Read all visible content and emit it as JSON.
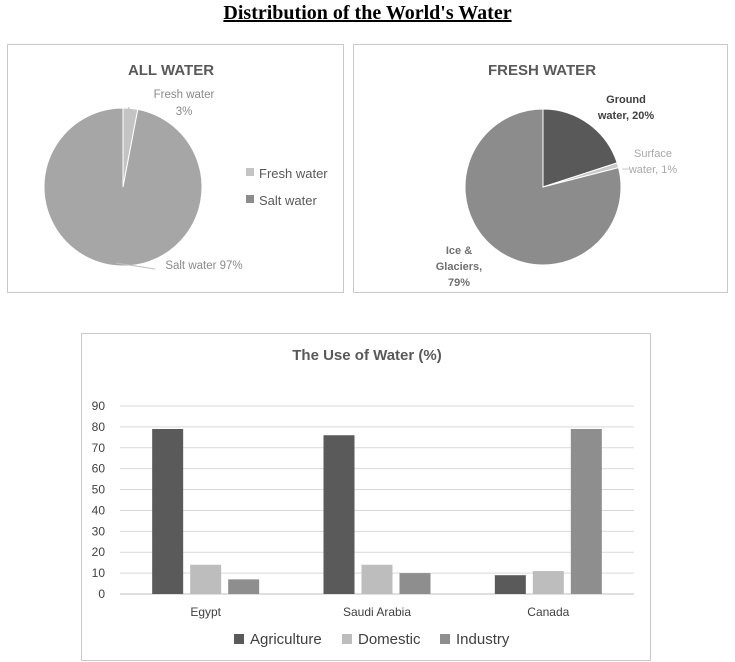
{
  "page_title": "Distribution of the World's Water",
  "colors": {
    "pie_fresh": "#c4c4c4",
    "pie_salt": "#a6a6a6",
    "ground": "#595959",
    "surface": "#c9c9c9",
    "ice": "#8c8c8c",
    "agriculture": "#5a5a5a",
    "domestic": "#bdbdbd",
    "industry": "#8e8e8e",
    "grid": "#d9d9d9"
  },
  "chart_data": [
    {
      "type": "pie",
      "title": "ALL WATER",
      "slices": [
        {
          "name": "Fresh water",
          "value": 3,
          "label_name": "Fresh water",
          "label_value": "3%"
        },
        {
          "name": "Salt water",
          "value": 97,
          "label_name": "Salt water 97%",
          "label_value": ""
        }
      ],
      "legend": [
        "Fresh water",
        "Salt water"
      ],
      "legend_position": "right"
    },
    {
      "type": "pie",
      "title": "FRESH WATER",
      "slices": [
        {
          "name": "Ground water",
          "value": 20,
          "label_lines": [
            "Ground",
            "water, 20%"
          ]
        },
        {
          "name": "Surface water",
          "value": 1,
          "label_lines": [
            "Surface",
            "water, 1%"
          ]
        },
        {
          "name": "Ice & Glaciers",
          "value": 79,
          "label_lines": [
            "Ice &",
            "Glaciers,",
            "79%"
          ]
        }
      ]
    },
    {
      "type": "bar",
      "title": "The Use of Water (%)",
      "categories": [
        "Egypt",
        "Saudi Arabia",
        "Canada"
      ],
      "series": [
        {
          "name": "Agriculture",
          "values": [
            79,
            76,
            9
          ]
        },
        {
          "name": "Domestic",
          "values": [
            14,
            14,
            11
          ]
        },
        {
          "name": "Industry",
          "values": [
            7,
            10,
            79
          ]
        }
      ],
      "ylim": [
        0,
        90
      ],
      "yticks": [
        0,
        10,
        20,
        30,
        40,
        50,
        60,
        70,
        80,
        90
      ],
      "grid": true,
      "legend_position": "bottom"
    }
  ]
}
